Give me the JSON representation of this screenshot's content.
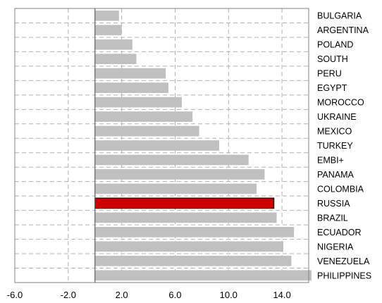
{
  "chart_data": {
    "type": "bar",
    "orientation": "horizontal",
    "categories": [
      "BULGARIA",
      "ARGENTINA",
      "POLAND",
      "SOUTH",
      "PERU",
      "EGYPT",
      "MOROCCO",
      "UKRAINE",
      "MEXICO",
      "TURKEY",
      "EMBI+",
      "PANAMA",
      "COLOMBIA",
      "RUSSIA",
      "BRAZIL",
      "ECUADOR",
      "NIGERIA",
      "VENEZUELA",
      "PHILIPPINES"
    ],
    "values": [
      1.8,
      2.0,
      2.8,
      3.1,
      5.3,
      5.5,
      6.5,
      7.3,
      7.8,
      9.3,
      11.5,
      12.7,
      12.1,
      13.4,
      13.6,
      14.9,
      14.1,
      14.7,
      16.3
    ],
    "highlight": "RUSSIA",
    "colors": {
      "bar": "#c0c0c0",
      "highlight": "#cc0000",
      "grid": "#b0b0b0",
      "axis": "#808080"
    },
    "xlim": [
      -6.0,
      16.0
    ],
    "xticks": [
      "-6.0",
      "-2.0",
      "2.0",
      "6.0",
      "10.0",
      "14.0"
    ],
    "grid": true,
    "legend": "none"
  }
}
